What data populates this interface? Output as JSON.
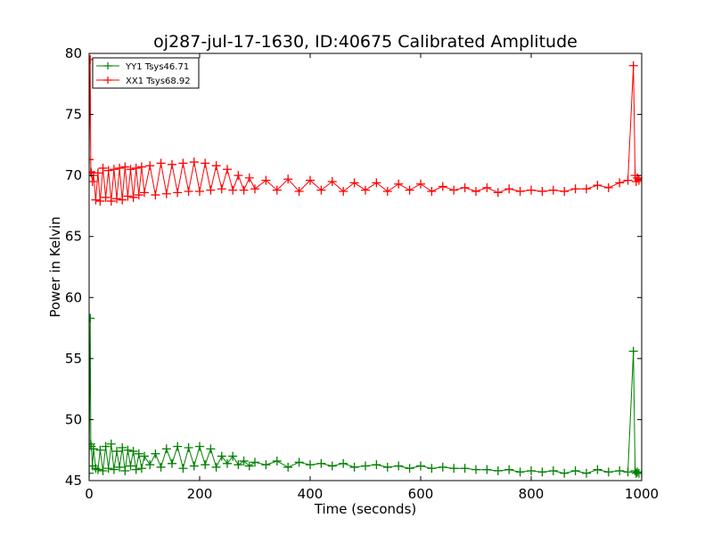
{
  "chart_data": {
    "type": "line",
    "title": "oj287-jul-17-1630, ID:40675 Calibrated Amplitude",
    "xlabel": "Time (seconds)",
    "ylabel": "Power in Kelvin",
    "xlim": [
      0,
      1000
    ],
    "ylim": [
      45,
      80
    ],
    "xticks": [
      0,
      200,
      400,
      600,
      800,
      1000
    ],
    "yticks": [
      45,
      50,
      55,
      60,
      65,
      70,
      75,
      80
    ],
    "grid": false,
    "legend_position": "top-left",
    "series": [
      {
        "name": "YY1 Tsys46.71",
        "color": "#008000",
        "marker": "+",
        "x": [
          0,
          2,
          3,
          4,
          6,
          8,
          12,
          16,
          20,
          25,
          30,
          35,
          40,
          45,
          50,
          55,
          60,
          65,
          70,
          75,
          80,
          85,
          90,
          95,
          100,
          110,
          120,
          130,
          140,
          150,
          160,
          170,
          180,
          190,
          200,
          210,
          220,
          230,
          240,
          250,
          260,
          270,
          280,
          290,
          300,
          320,
          340,
          360,
          380,
          400,
          420,
          440,
          460,
          480,
          500,
          520,
          540,
          560,
          580,
          600,
          620,
          640,
          660,
          680,
          700,
          720,
          740,
          760,
          780,
          800,
          820,
          840,
          860,
          880,
          900,
          920,
          940,
          960,
          975,
          985,
          988,
          990,
          992,
          995,
          1000
        ],
        "y": [
          45.6,
          58.3,
          48.0,
          47.8,
          46.2,
          47.6,
          46.0,
          45.9,
          47.5,
          45.8,
          47.8,
          46.0,
          48.0,
          45.9,
          47.4,
          46.1,
          47.7,
          45.8,
          47.5,
          46.2,
          47.4,
          45.9,
          47.2,
          46.0,
          47.0,
          46.3,
          47.2,
          46.1,
          47.6,
          46.4,
          47.8,
          46.0,
          47.7,
          46.2,
          47.8,
          46.3,
          47.6,
          46.1,
          47.0,
          46.4,
          47.0,
          46.3,
          46.6,
          46.2,
          46.5,
          46.3,
          46.6,
          46.1,
          46.5,
          46.3,
          46.4,
          46.2,
          46.4,
          46.1,
          46.2,
          46.3,
          46.1,
          46.2,
          46.0,
          46.2,
          46.0,
          46.1,
          46.0,
          46.0,
          45.9,
          45.9,
          45.8,
          45.9,
          45.7,
          45.8,
          45.7,
          45.8,
          45.6,
          45.8,
          45.6,
          45.9,
          45.7,
          45.8,
          45.7,
          55.6,
          45.8,
          45.6,
          45.7,
          45.6,
          45.6
        ]
      },
      {
        "name": "XX1 Tsys68.92",
        "color": "#ff0000",
        "marker": "+",
        "x": [
          0,
          2,
          3,
          4,
          6,
          8,
          12,
          16,
          20,
          25,
          30,
          35,
          40,
          45,
          50,
          55,
          60,
          65,
          70,
          75,
          80,
          85,
          90,
          95,
          100,
          110,
          120,
          130,
          140,
          150,
          160,
          170,
          180,
          190,
          200,
          210,
          220,
          230,
          240,
          250,
          260,
          270,
          280,
          290,
          300,
          320,
          340,
          360,
          380,
          400,
          420,
          440,
          460,
          480,
          500,
          520,
          540,
          560,
          580,
          600,
          620,
          640,
          660,
          680,
          700,
          720,
          740,
          760,
          780,
          800,
          820,
          840,
          860,
          880,
          900,
          920,
          940,
          960,
          975,
          985,
          988,
          990,
          992,
          995,
          1000
        ],
        "y": [
          71.3,
          79.5,
          70.3,
          70.2,
          69.5,
          70.0,
          68.0,
          70.2,
          67.9,
          70.6,
          68.2,
          70.4,
          67.9,
          70.5,
          68.1,
          70.6,
          68.0,
          70.7,
          68.3,
          70.5,
          68.2,
          70.6,
          68.4,
          70.7,
          68.6,
          70.8,
          68.4,
          71.0,
          68.5,
          70.9,
          68.6,
          71.0,
          68.7,
          71.1,
          68.7,
          71.0,
          68.8,
          70.8,
          68.9,
          70.5,
          68.8,
          70.0,
          68.8,
          69.8,
          68.9,
          69.6,
          68.8,
          69.7,
          68.7,
          69.6,
          68.8,
          69.5,
          68.7,
          69.4,
          68.8,
          69.4,
          68.7,
          69.3,
          68.8,
          69.3,
          68.7,
          69.1,
          68.8,
          69.0,
          68.7,
          69.0,
          68.6,
          68.9,
          68.7,
          68.8,
          68.7,
          68.8,
          68.7,
          68.9,
          68.9,
          69.2,
          69.0,
          69.4,
          69.6,
          79.0,
          70.0,
          69.5,
          69.8,
          69.6,
          69.7
        ]
      }
    ]
  }
}
